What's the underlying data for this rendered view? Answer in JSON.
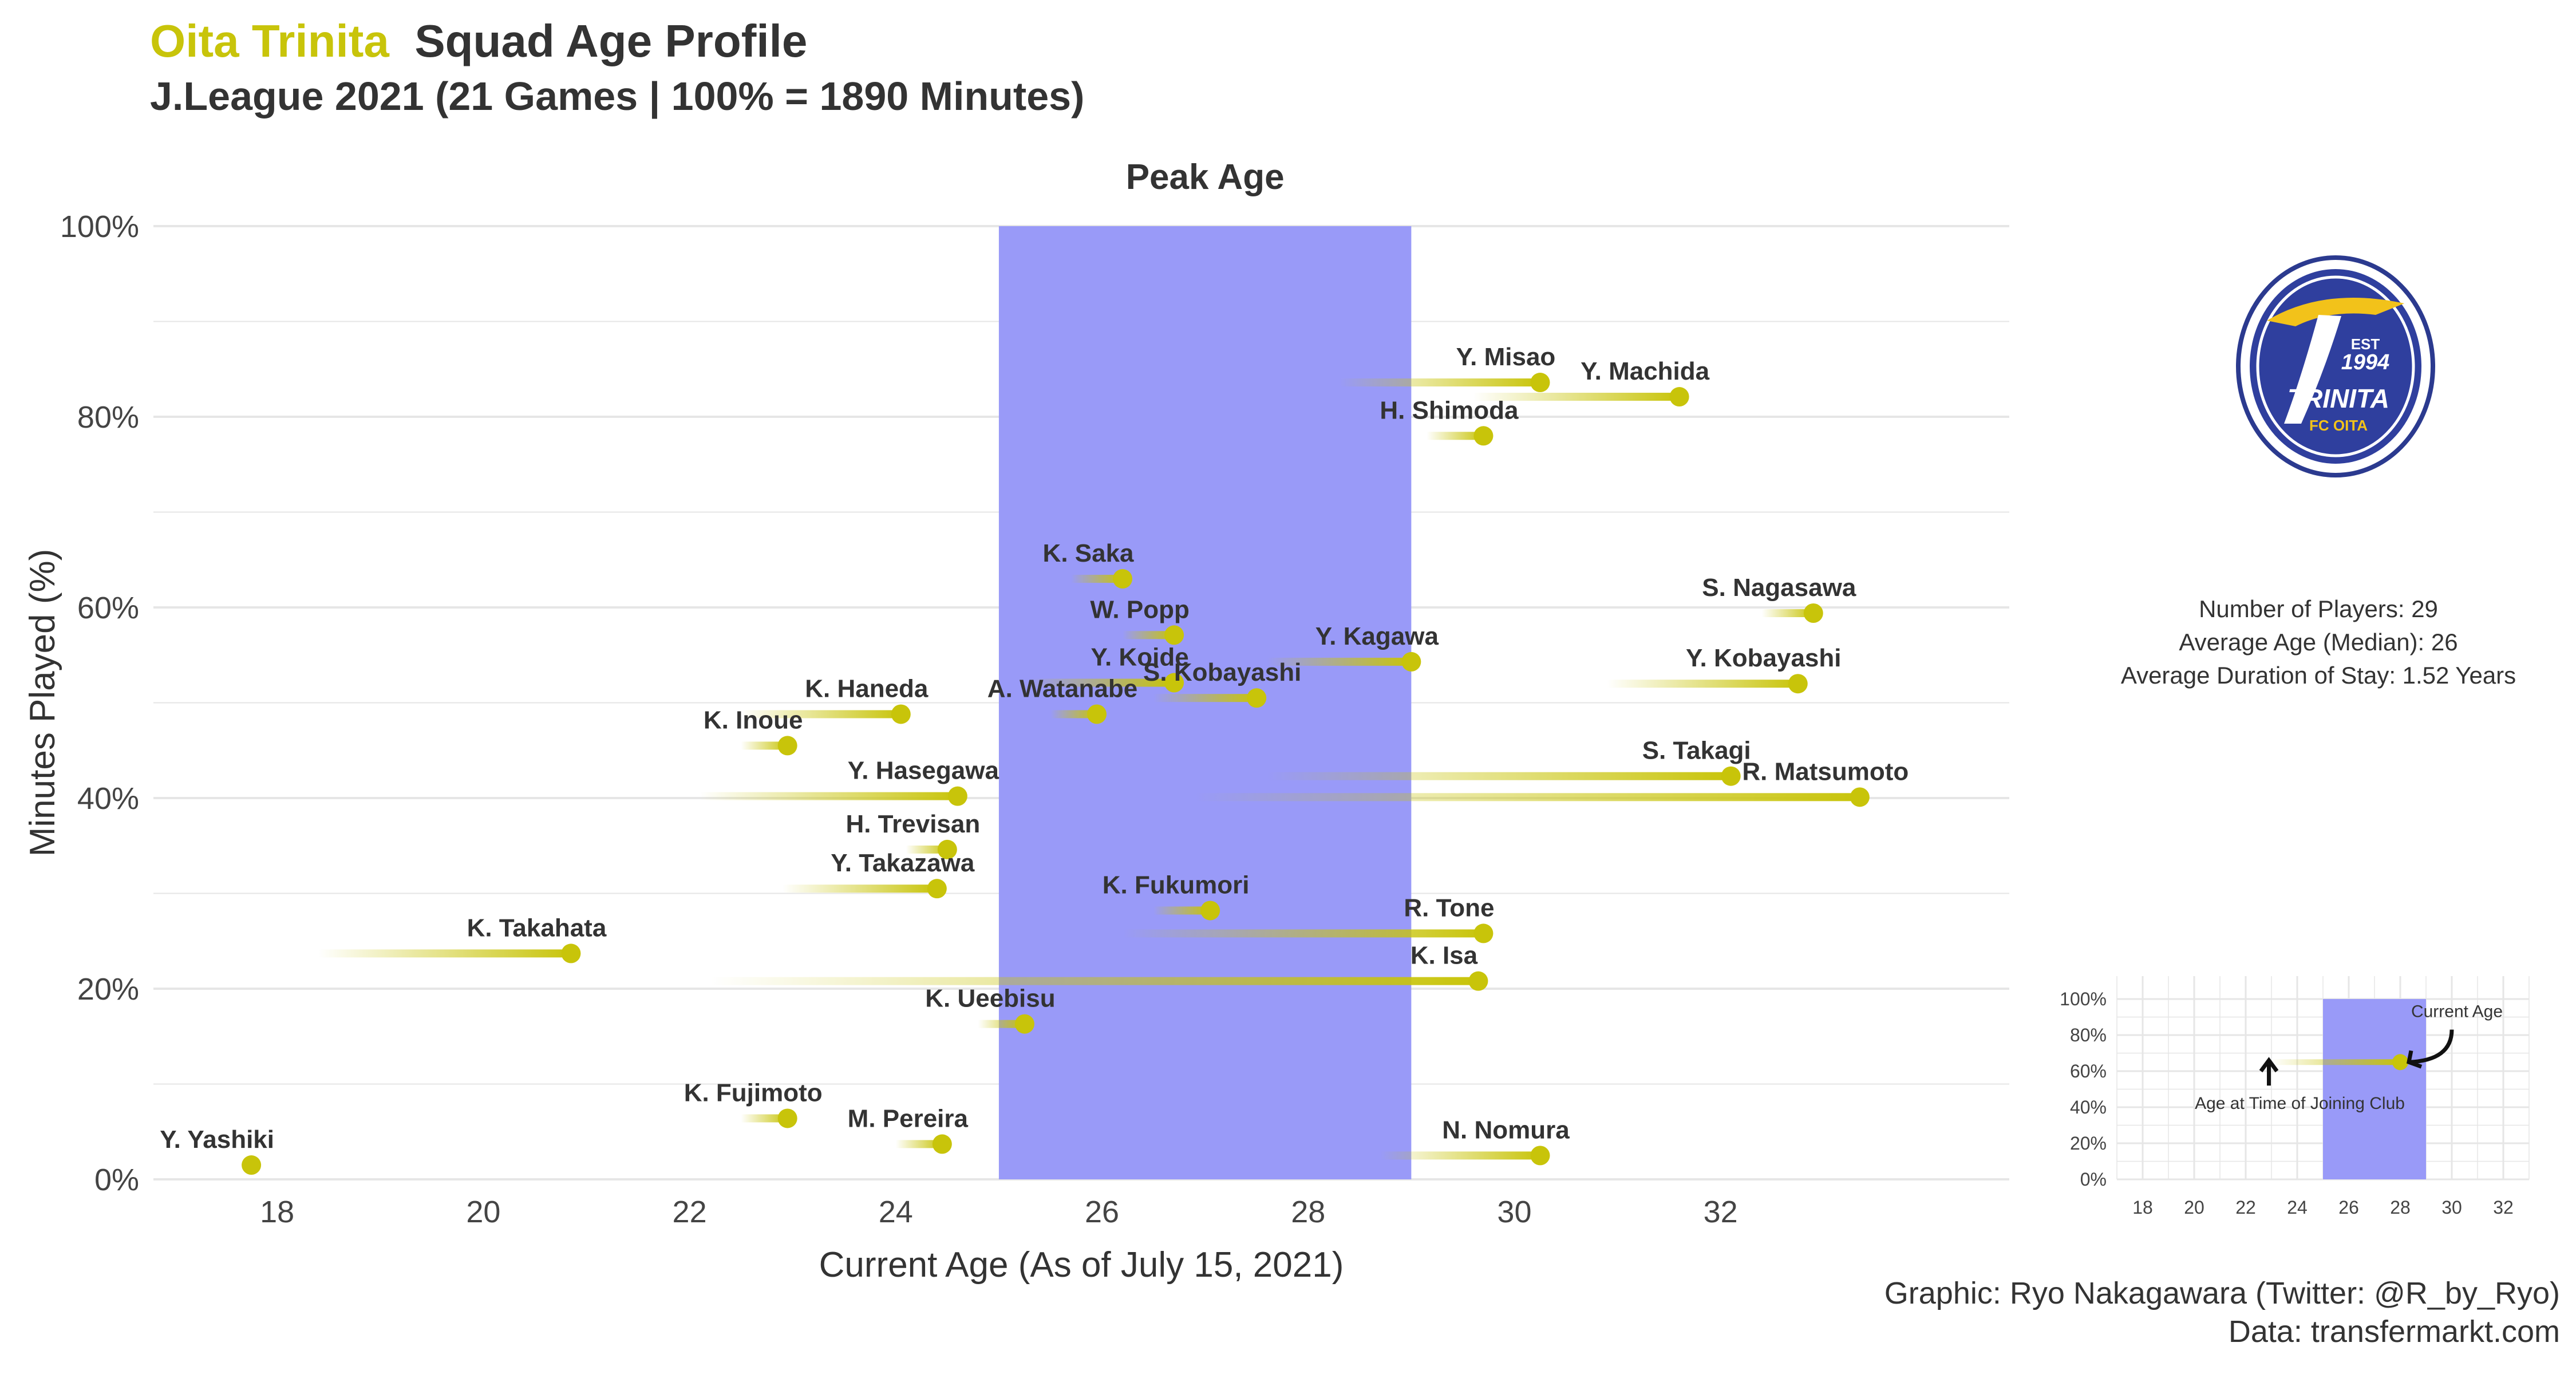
{
  "header": {
    "team": "Oita Trinita",
    "title": "Squad Age Profile",
    "subtitle": "J.League 2021 (21 Games | 100% = 1890 Minutes)"
  },
  "colors": {
    "team_accent": "#c8c40a",
    "peak_band": "#9697f8",
    "point": "#c8c40a",
    "text": "#333333",
    "grid": "#e6e6e6"
  },
  "logo": {
    "icon": "oita-trinita-crest-icon",
    "text_est": "EST",
    "text_year": "1994",
    "text_name": "TRINITA",
    "text_sub": "FC OITA"
  },
  "stats": {
    "players": "Number of Players: 29",
    "median_age": "Average Age (Median): 26",
    "stay": "Average Duration of Stay: 1.52 Years"
  },
  "caption": {
    "graphic": "Graphic: Ryo Nakagawara (Twitter: @R_by_Ryo)",
    "data": "Data: transfermarkt.com"
  },
  "chart_data": [
    {
      "type": "scatter",
      "title": "Squad Age Profile",
      "xlabel": "Current Age (As of July 15, 2021)",
      "ylabel": "Minutes Played (%)",
      "xlim": [
        16.8,
        34.8
      ],
      "ylim": [
        0,
        100
      ],
      "x_ticks": [
        18,
        20,
        22,
        24,
        26,
        28,
        30,
        32
      ],
      "y_ticks": [
        0,
        20,
        40,
        60,
        80,
        100
      ],
      "y_tick_labels": [
        "0%",
        "20%",
        "40%",
        "60%",
        "80%",
        "100%"
      ],
      "peak_age": {
        "label": "Peak Age",
        "from": 25,
        "to": 29
      },
      "grid": true,
      "players": [
        {
          "name": "Y. Misao",
          "age": 30.25,
          "joined_age": 28.3,
          "minutes_pct": 83.6
        },
        {
          "name": "Y. Machida",
          "age": 31.6,
          "joined_age": 29.6,
          "minutes_pct": 82.1
        },
        {
          "name": "H. Shimoda",
          "age": 29.7,
          "joined_age": 29.15,
          "minutes_pct": 78.0
        },
        {
          "name": "K. Saka",
          "age": 26.2,
          "joined_age": 25.7,
          "minutes_pct": 63.0
        },
        {
          "name": "S. Nagasawa",
          "age": 32.9,
          "joined_age": 32.4,
          "minutes_pct": 59.4
        },
        {
          "name": "W. Popp",
          "age": 26.7,
          "joined_age": 26.2,
          "minutes_pct": 57.1
        },
        {
          "name": "Y. Kagawa",
          "age": 29.0,
          "joined_age": 27.6,
          "minutes_pct": 54.3
        },
        {
          "name": "Y. Koide",
          "age": 26.7,
          "joined_age": 25.3,
          "minutes_pct": 52.1
        },
        {
          "name": "Y. Kobayashi",
          "age": 32.75,
          "joined_age": 30.9,
          "minutes_pct": 52.0
        },
        {
          "name": "S. Kobayashi",
          "age": 27.5,
          "joined_age": 26.5,
          "minutes_pct": 50.5
        },
        {
          "name": "K. Haneda",
          "age": 24.05,
          "joined_age": 22.5,
          "minutes_pct": 48.8
        },
        {
          "name": "A. Watanabe",
          "age": 25.95,
          "joined_age": 25.5,
          "minutes_pct": 48.8
        },
        {
          "name": "K. Inoue",
          "age": 22.95,
          "joined_age": 22.5,
          "minutes_pct": 45.5
        },
        {
          "name": "S. Takagi",
          "age": 32.1,
          "joined_age": 27.6,
          "minutes_pct": 42.3
        },
        {
          "name": "Y. Hasegawa",
          "age": 24.6,
          "joined_age": 22.1,
          "minutes_pct": 40.2
        },
        {
          "name": "R. Matsumoto",
          "age": 33.35,
          "joined_age": 26.9,
          "minutes_pct": 40.1
        },
        {
          "name": "H. Trevisan",
          "age": 24.5,
          "joined_age": 24.1,
          "minutes_pct": 34.6
        },
        {
          "name": "Y. Takazawa",
          "age": 24.4,
          "joined_age": 22.9,
          "minutes_pct": 30.5
        },
        {
          "name": "K. Fukumori",
          "age": 27.05,
          "joined_age": 26.5,
          "minutes_pct": 28.2
        },
        {
          "name": "R. Tone",
          "age": 29.7,
          "joined_age": 26.2,
          "minutes_pct": 25.8
        },
        {
          "name": "K. Takahata",
          "age": 20.85,
          "joined_age": 18.4,
          "minutes_pct": 23.7
        },
        {
          "name": "K. Isa",
          "age": 29.65,
          "joined_age": 22.2,
          "minutes_pct": 20.8
        },
        {
          "name": "K. Ueebisu",
          "age": 25.25,
          "joined_age": 24.8,
          "minutes_pct": 16.3
        },
        {
          "name": "K. Fujimoto",
          "age": 22.95,
          "joined_age": 22.5,
          "minutes_pct": 6.4
        },
        {
          "name": "M. Pereira",
          "age": 24.45,
          "joined_age": 24.0,
          "minutes_pct": 3.7
        },
        {
          "name": "N. Nomura",
          "age": 30.25,
          "joined_age": 28.7,
          "minutes_pct": 2.5
        },
        {
          "name": "Y. Yashiki",
          "age": 17.75,
          "joined_age": 17.75,
          "minutes_pct": 1.5
        }
      ]
    },
    {
      "type": "scatter",
      "title": "",
      "xlim": [
        17,
        33
      ],
      "ylim": [
        0,
        100
      ],
      "x_ticks": [
        18,
        20,
        22,
        24,
        26,
        28,
        30,
        32
      ],
      "y_ticks": [
        0,
        20,
        40,
        60,
        80,
        100
      ],
      "y_tick_labels": [
        "0%",
        "20%",
        "40%",
        "60%",
        "80%",
        "100%"
      ],
      "peak_age": {
        "from": 25,
        "to": 29
      },
      "example": {
        "joined_age": 23,
        "age": 28,
        "minutes_pct": 65
      },
      "annotations": {
        "current_age": "Current Age",
        "joined": "Age at Time of Joining Club"
      }
    }
  ]
}
